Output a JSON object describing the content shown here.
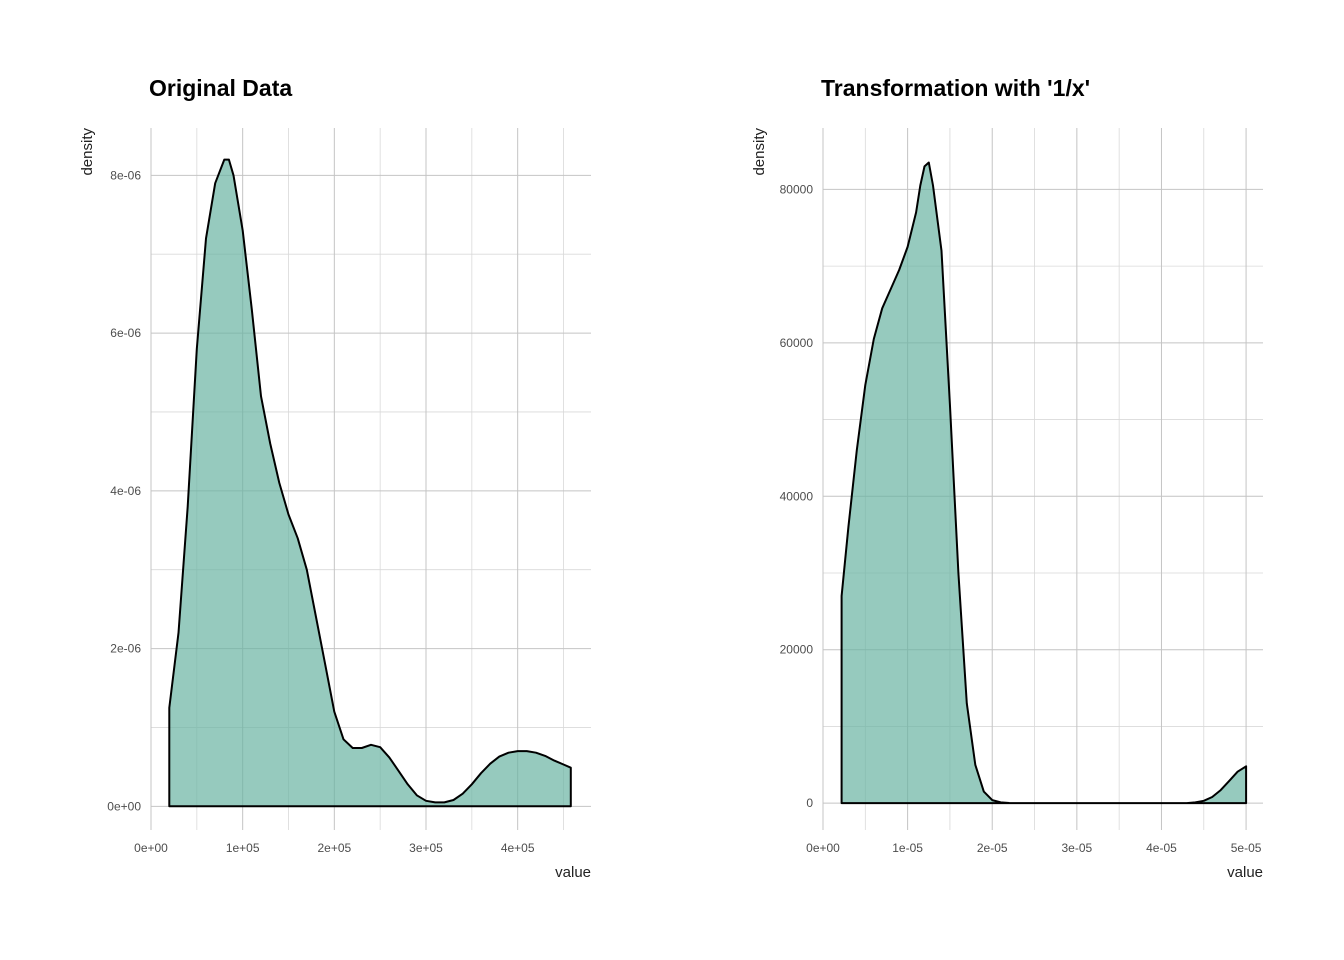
{
  "colors": {
    "fill": "#69b3a2",
    "fill_opacity": 0.7,
    "line": "#000000",
    "grid": "#c4c4c4"
  },
  "chart_data": [
    {
      "type": "area",
      "title": "Original Data",
      "xlabel": "value",
      "ylabel": "density",
      "xlim": [
        0,
        480000
      ],
      "ylim": [
        -3e-07,
        8.6e-06
      ],
      "x_ticks": [
        0,
        100000,
        200000,
        300000,
        400000
      ],
      "x_tick_labels": [
        "0e+00",
        "1e+05",
        "2e+05",
        "3e+05",
        "4e+05"
      ],
      "y_ticks": [
        0,
        2e-06,
        4e-06,
        6e-06,
        8e-06
      ],
      "y_tick_labels": [
        "0e+00",
        "2e-06",
        "4e-06",
        "6e-06",
        "8e-06"
      ],
      "grid": true,
      "series": [
        {
          "x": [
            20000,
            30000,
            40000,
            50000,
            60000,
            70000,
            80000,
            85000,
            90000,
            100000,
            110000,
            120000,
            130000,
            140000,
            150000,
            160000,
            170000,
            180000,
            190000,
            200000,
            210000,
            220000,
            230000,
            240000,
            250000,
            260000,
            270000,
            280000,
            290000,
            300000,
            310000,
            320000,
            330000,
            340000,
            350000,
            360000,
            370000,
            380000,
            390000,
            400000,
            410000,
            420000,
            430000,
            440000,
            450000,
            458000
          ],
          "y": [
            1.25e-06,
            2.2e-06,
            3.8e-06,
            5.8e-06,
            7.2e-06,
            7.9e-06,
            8.2e-06,
            8.2e-06,
            8e-06,
            7.3e-06,
            6.3e-06,
            5.2e-06,
            4.6e-06,
            4.1e-06,
            3.7e-06,
            3.4e-06,
            3e-06,
            2.4e-06,
            1.8e-06,
            1.2e-06,
            8.5e-07,
            7.4e-07,
            7.4e-07,
            7.8e-07,
            7.5e-07,
            6.2e-07,
            4.5e-07,
            2.8e-07,
            1.4e-07,
            7e-08,
            5e-08,
            5e-08,
            8e-08,
            1.6e-07,
            2.8e-07,
            4.2e-07,
            5.4e-07,
            6.3e-07,
            6.8e-07,
            7e-07,
            7e-07,
            6.8e-07,
            6.4e-07,
            5.8e-07,
            5.3e-07,
            4.9e-07
          ]
        }
      ]
    },
    {
      "type": "area",
      "title": "Transformation with '1/x'",
      "xlabel": "value",
      "ylabel": "density",
      "xlim": [
        0,
        5.2e-05
      ],
      "ylim": [
        -3500,
        88000
      ],
      "x_ticks": [
        0,
        1e-05,
        2e-05,
        3e-05,
        4e-05,
        5e-05
      ],
      "x_tick_labels": [
        "0e+00",
        "1e-05",
        "2e-05",
        "3e-05",
        "4e-05",
        "5e-05"
      ],
      "y_ticks": [
        0,
        20000,
        40000,
        60000,
        80000
      ],
      "y_tick_labels": [
        "0",
        "20000",
        "40000",
        "60000",
        "80000"
      ],
      "grid": true,
      "series": [
        {
          "x": [
            2.2e-06,
            3e-06,
            4e-06,
            5e-06,
            6e-06,
            7e-06,
            8e-06,
            9e-06,
            1e-05,
            1.1e-05,
            1.15e-05,
            1.2e-05,
            1.25e-05,
            1.3e-05,
            1.4e-05,
            1.5e-05,
            1.6e-05,
            1.7e-05,
            1.8e-05,
            1.9e-05,
            2e-05,
            2.1e-05,
            2.2e-05,
            2.3e-05,
            2.5e-05,
            3e-05,
            3.5e-05,
            4e-05,
            4.3e-05,
            4.4e-05,
            4.5e-05,
            4.6e-05,
            4.7e-05,
            4.8e-05,
            4.9e-05,
            5e-05
          ],
          "y": [
            27000,
            36000,
            46000,
            54500,
            60500,
            64500,
            67000,
            69500,
            72500,
            77000,
            80500,
            83000,
            83500,
            80500,
            72000,
            52000,
            30000,
            13000,
            5000,
            1500,
            400,
            100,
            20,
            0,
            0,
            0,
            0,
            0,
            0,
            100,
            300,
            800,
            1700,
            2900,
            4100,
            4800
          ]
        }
      ]
    }
  ]
}
